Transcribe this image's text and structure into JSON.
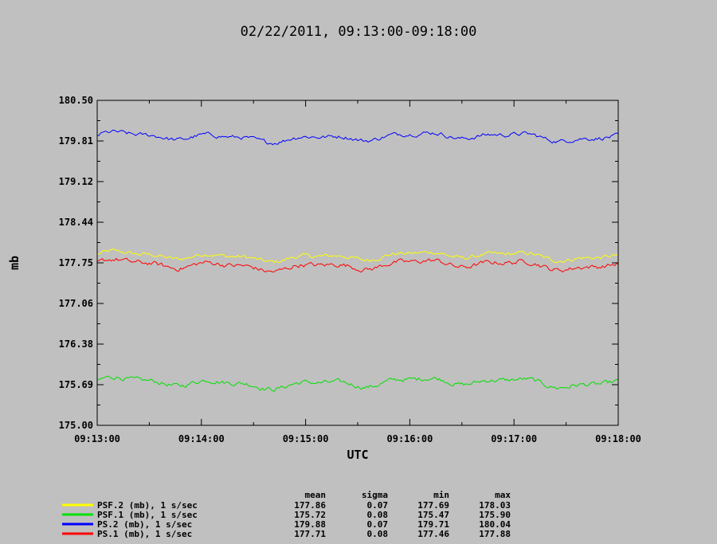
{
  "chart_data": {
    "type": "line",
    "title": "02/22/2011, 09:13:00-09:18:00",
    "xlabel": "UTC",
    "ylabel": "mb",
    "x_ticks": [
      "09:13:00",
      "09:14:00",
      "09:15:00",
      "09:16:00",
      "09:17:00",
      "09:18:00"
    ],
    "y_ticks": [
      "180.50",
      "179.81",
      "179.12",
      "178.44",
      "177.75",
      "177.06",
      "176.38",
      "175.69",
      "175.00"
    ],
    "ylim": [
      175.0,
      180.5
    ],
    "xlim_seconds": [
      0,
      300
    ],
    "grid": false,
    "stats_headers": [
      "mean",
      "sigma",
      "min",
      "max"
    ],
    "series": [
      {
        "name": "PSF.2 (mb), 1 s/sec",
        "color": "#ffff00",
        "mean": "177.86",
        "sigma": "0.07",
        "min": "177.69",
        "max": "178.03",
        "base": 177.86,
        "amp": 0.07
      },
      {
        "name": "PSF.1 (mb), 1 s/sec",
        "color": "#00e000",
        "mean": "175.72",
        "sigma": "0.08",
        "min": "175.47",
        "max": "175.90",
        "base": 175.72,
        "amp": 0.08
      },
      {
        "name": "PS.2 (mb), 1 s/sec",
        "color": "#0000ff",
        "mean": "179.88",
        "sigma": "0.07",
        "min": "179.71",
        "max": "180.04",
        "base": 179.88,
        "amp": 0.07
      },
      {
        "name": "PS.1 (mb), 1 s/sec",
        "color": "#ff0000",
        "mean": "177.71",
        "sigma": "0.08",
        "min": "177.46",
        "max": "177.88",
        "base": 177.71,
        "amp": 0.08
      }
    ]
  }
}
